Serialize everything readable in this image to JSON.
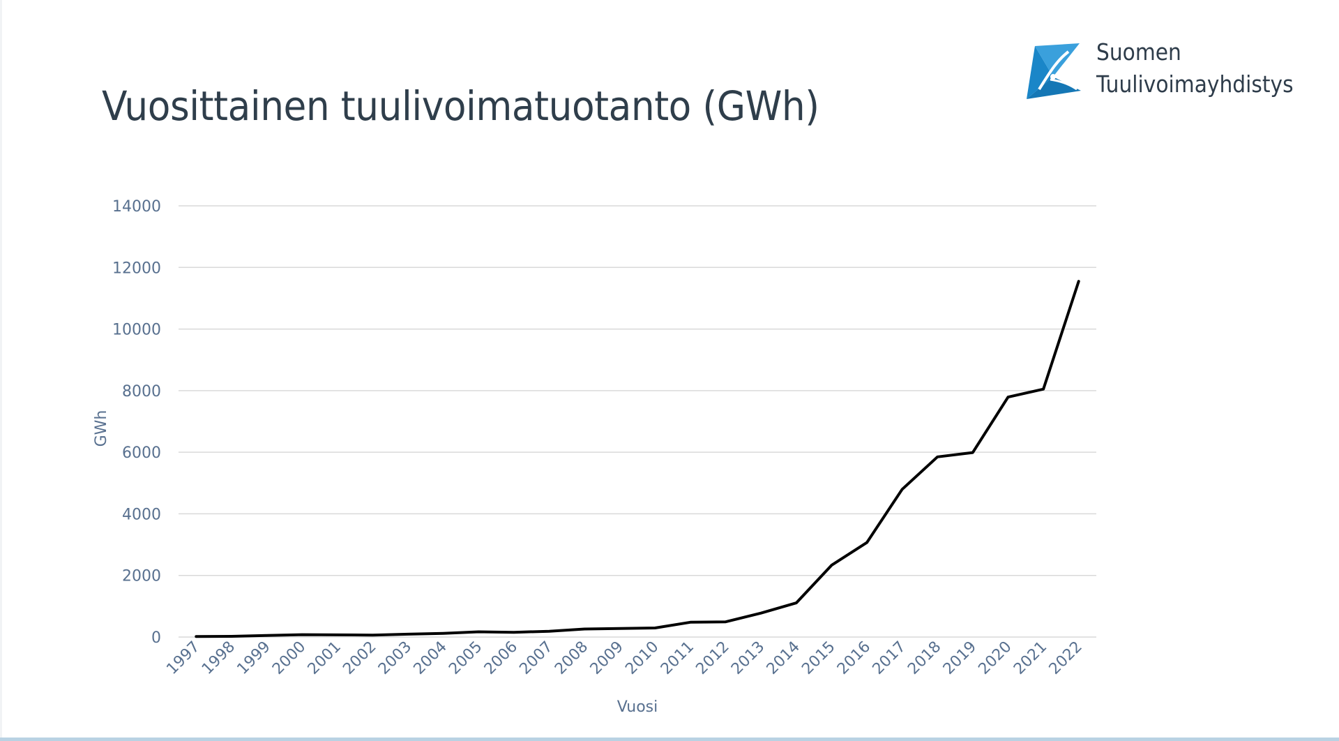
{
  "slide": {
    "title": "Vuosittainen tuulivoimatuotanto (GWh)"
  },
  "logo": {
    "line1": "Suomen",
    "line2": "Tuulivoimayhdistys",
    "icon": "wind-turbine-icon",
    "color_primary": "#1a86c8",
    "color_secondary": "#7cc6ec"
  },
  "chart_data": {
    "type": "line",
    "title": "Vuosittainen tuulivoimatuotanto (GWh)",
    "xlabel": "Vuosi",
    "ylabel": "GWh",
    "ylim": [
      0,
      14000
    ],
    "yticks": [
      0,
      2000,
      4000,
      6000,
      8000,
      10000,
      12000,
      14000
    ],
    "grid": true,
    "legend": "none",
    "line_color": "#000000",
    "categories": [
      "1997",
      "1998",
      "1999",
      "2000",
      "2001",
      "2002",
      "2003",
      "2004",
      "2005",
      "2006",
      "2007",
      "2008",
      "2009",
      "2010",
      "2011",
      "2012",
      "2013",
      "2014",
      "2015",
      "2016",
      "2017",
      "2018",
      "2019",
      "2020",
      "2021",
      "2022"
    ],
    "series": [
      {
        "values": [
          17,
          23,
          49,
          78,
          70,
          63,
          92,
          120,
          170,
          154,
          188,
          261,
          277,
          294,
          481,
          494,
          777,
          1107,
          2330,
          3068,
          4795,
          5850,
          5990,
          7790,
          8050,
          11550
        ]
      }
    ]
  }
}
